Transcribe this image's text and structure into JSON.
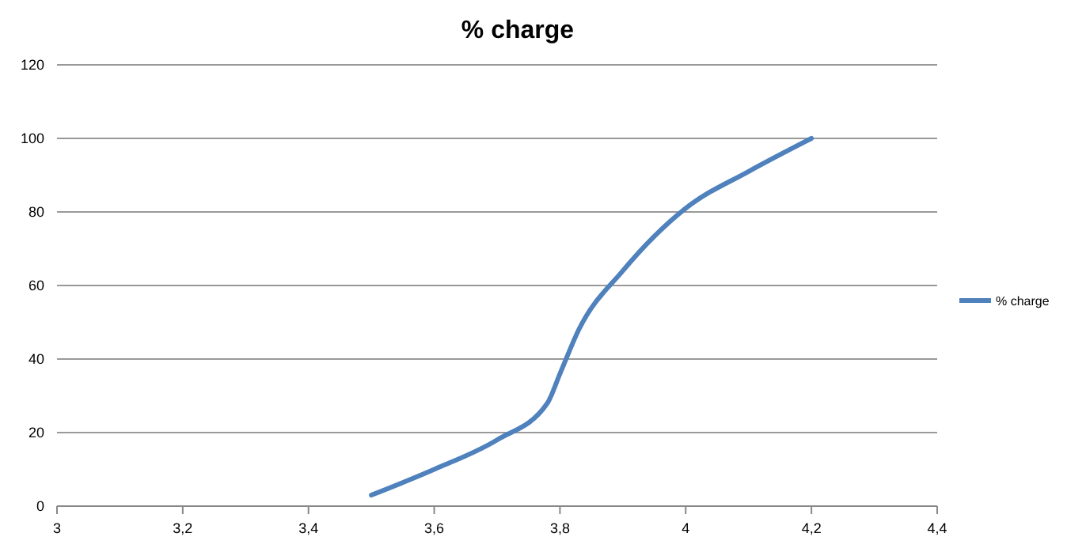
{
  "chart_data": {
    "type": "line",
    "title": "% charge",
    "x": [
      3.5,
      3.6,
      3.7,
      3.78,
      3.8,
      3.83,
      3.9,
      4.0,
      4.1,
      4.2
    ],
    "series": [
      {
        "name": "% charge",
        "color": "#4f81bd",
        "values": [
          3,
          10,
          18,
          28,
          36,
          48,
          64,
          81,
          91,
          100
        ]
      }
    ],
    "xlim": [
      3,
      4.4
    ],
    "xticks": [
      3,
      {
        "value": 3.2,
        "label": "3,2"
      },
      {
        "value": 3.4,
        "label": "3,4"
      },
      {
        "value": 3.6,
        "label": "3,6"
      },
      {
        "value": 3.8,
        "label": "3,8"
      },
      4,
      {
        "value": 4.2,
        "label": "4,2"
      },
      {
        "value": 4.4,
        "label": "4,4"
      }
    ],
    "ylim": [
      0,
      120
    ],
    "yticks": [
      0,
      20,
      40,
      60,
      80,
      100,
      120
    ],
    "grid": "y",
    "legend": "right",
    "marker": "none",
    "line_style": "solid"
  }
}
